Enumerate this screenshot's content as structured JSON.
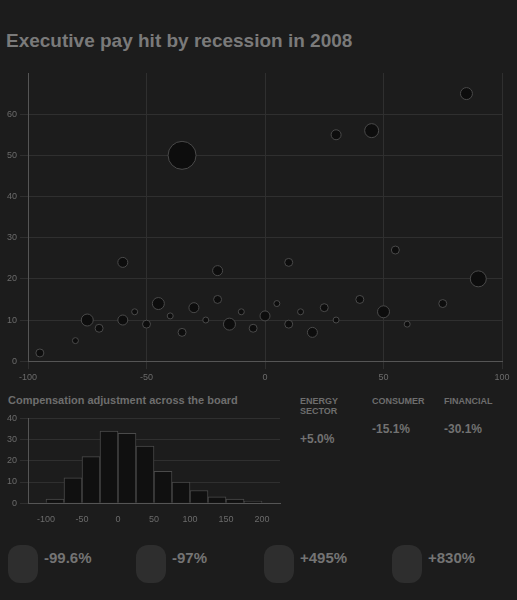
{
  "title": "Executive pay hit by recession in 2008",
  "chart_data": [
    {
      "type": "bubble",
      "x": [
        -95,
        -80,
        -70,
        -60,
        -55,
        -50,
        -45,
        -40,
        -35,
        -30,
        -25,
        -20,
        -15,
        -10,
        -5,
        0,
        5,
        10,
        15,
        20,
        25,
        30,
        40,
        50,
        60,
        75,
        90,
        -35,
        30,
        45,
        -20,
        10,
        55,
        -60,
        85,
        -75
      ],
      "values": [
        2,
        5,
        8,
        10,
        12,
        9,
        14,
        11,
        7,
        13,
        10,
        15,
        9,
        12,
        8,
        11,
        14,
        9,
        12,
        7,
        13,
        10,
        15,
        12,
        9,
        14,
        20,
        50,
        55,
        56,
        22,
        24,
        27,
        24,
        65,
        10
      ],
      "sizes": [
        4,
        3,
        4,
        5,
        3,
        4,
        6,
        3,
        4,
        5,
        3,
        4,
        6,
        3,
        4,
        5,
        3,
        4,
        3,
        5,
        4,
        3,
        4,
        6,
        3,
        4,
        8,
        14,
        5,
        7,
        5,
        4,
        4,
        5,
        6,
        6
      ],
      "color": "#0d0d0d",
      "xlim": [
        -100,
        100
      ],
      "xticks": [
        -100,
        -50,
        0,
        50,
        100
      ],
      "ylim": [
        0,
        70
      ],
      "yticks": [
        0,
        10,
        20,
        30,
        40,
        50,
        60
      ],
      "grid": true
    },
    {
      "type": "histogram",
      "title": "Compensation adjustment across the board",
      "bins": [
        -100,
        -75,
        -50,
        -25,
        0,
        25,
        50,
        75,
        100,
        125,
        150,
        175,
        200
      ],
      "values": [
        2,
        12,
        22,
        34,
        33,
        27,
        15,
        10,
        6,
        3,
        2,
        1
      ],
      "color": "#101010",
      "xlim": [
        -100,
        200
      ],
      "xticks": [
        -100,
        -50,
        0,
        50,
        100,
        150,
        200
      ],
      "ylim": [
        0,
        40
      ],
      "yticks": [
        0,
        10,
        20,
        30,
        40
      ],
      "grid": true
    }
  ],
  "sector_panels": [
    {
      "name": "ENERGY SECTOR",
      "value": "+5.0%"
    },
    {
      "name": "CONSUMER",
      "value": "-15.1%"
    },
    {
      "name": "FINANCIAL",
      "value": "-30.1%"
    }
  ],
  "callouts": [
    "-99.6%",
    "-97%",
    "+495%",
    "+830%"
  ]
}
